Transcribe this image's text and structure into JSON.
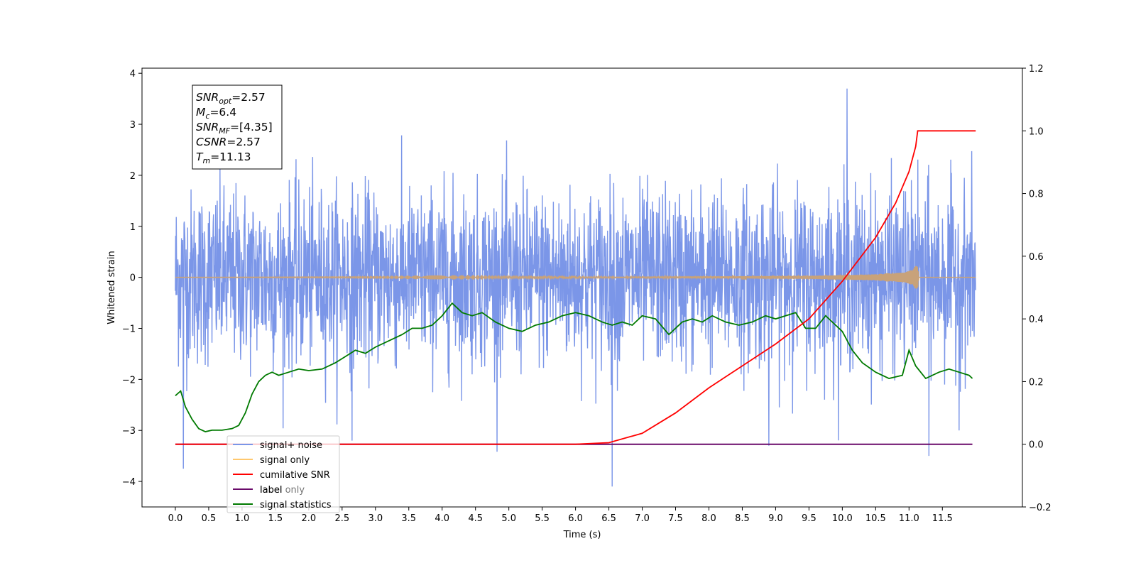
{
  "chart_data": {
    "type": "line",
    "xlabel": "Time (s)",
    "ylabel": "Whitened strain",
    "xlim": [
      -0.5,
      12.7
    ],
    "ylim": [
      -4.5,
      4.1
    ],
    "y2lim": [
      -0.2,
      1.2
    ],
    "x_ticks": [
      "0.0",
      "0.5",
      "1.0",
      "1.5",
      "2.0",
      "2.5",
      "3.0",
      "3.5",
      "4.0",
      "4.5",
      "5.0",
      "5.5",
      "6.0",
      "6.5",
      "7.0",
      "7.5",
      "8.0",
      "8.5",
      "9.0",
      "9.5",
      "10.0",
      "10.5",
      "11.0",
      "11.5"
    ],
    "y_ticks": [
      "4",
      "3",
      "2",
      "1",
      "0",
      "−1",
      "−2",
      "−3",
      "−4"
    ],
    "y2_ticks": [
      "1.2",
      "1.0",
      "0.8",
      "0.6",
      "0.4",
      "0.2",
      "0.0",
      "−0.2"
    ],
    "annotation": [
      {
        "base": "SNR",
        "sub": "opt",
        "value": "=2.57"
      },
      {
        "base": "M",
        "sub": "c",
        "value": "=6.4"
      },
      {
        "base": "SNR",
        "sub": "MF",
        "value": "=[4.35]"
      },
      {
        "base": "CSNR",
        "sub": "",
        "value": "=2.57"
      },
      {
        "base": "T",
        "sub": "m",
        "value": "=11.13"
      }
    ],
    "legend_position": "lower-left",
    "legend": [
      {
        "label": "signal+ noise",
        "color": "#7b96e8"
      },
      {
        "label": "signal only",
        "color": "#ffc86e"
      },
      {
        "label": "cumilative SNR",
        "color": "#ff0000"
      },
      {
        "label": "label",
        "color": "#6a0a6a"
      },
      {
        "label": "signal statistics",
        "color": "#007a00"
      }
    ],
    "ghost_legend_text": "label only",
    "series": {
      "noise": {
        "color": "#7b96e8",
        "x_start": 0.0,
        "x_end": 12.0,
        "envelope_top": 1.5,
        "envelope_bottom": -1.5
      },
      "signal": {
        "color": "#c8a27a",
        "x": [
          0.0,
          6.0,
          8.0,
          9.5,
          10.5,
          11.0,
          11.13,
          11.15,
          12.0
        ],
        "amplitude": [
          0.0,
          0.01,
          0.02,
          0.03,
          0.06,
          0.12,
          0.25,
          0.0,
          0.0
        ]
      },
      "cumulative_snr": {
        "color": "#ff0000",
        "x": [
          0.0,
          5.0,
          6.0,
          6.5,
          7.0,
          7.5,
          8.0,
          8.5,
          9.0,
          9.5,
          10.0,
          10.5,
          10.8,
          11.0,
          11.1,
          11.13,
          12.0
        ],
        "y": [
          0.0,
          0.0,
          0.0,
          0.005,
          0.035,
          0.1,
          0.18,
          0.25,
          0.32,
          0.4,
          0.52,
          0.66,
          0.77,
          0.87,
          0.95,
          1.0,
          1.0
        ]
      },
      "label": {
        "color": "#6a0a6a",
        "x": [
          0.0,
          11.95
        ],
        "y": [
          0.0,
          0.0
        ]
      },
      "signal_statistics": {
        "color": "#007a00",
        "x": [
          0.0,
          0.08,
          0.15,
          0.25,
          0.35,
          0.45,
          0.55,
          0.7,
          0.85,
          0.95,
          1.05,
          1.15,
          1.25,
          1.35,
          1.45,
          1.55,
          1.7,
          1.85,
          2.0,
          2.2,
          2.4,
          2.55,
          2.7,
          2.85,
          3.0,
          3.2,
          3.4,
          3.55,
          3.7,
          3.85,
          4.0,
          4.15,
          4.3,
          4.45,
          4.6,
          4.8,
          5.0,
          5.2,
          5.4,
          5.6,
          5.8,
          6.0,
          6.2,
          6.4,
          6.55,
          6.7,
          6.85,
          7.0,
          7.2,
          7.4,
          7.6,
          7.75,
          7.9,
          8.05,
          8.25,
          8.45,
          8.65,
          8.85,
          9.0,
          9.15,
          9.3,
          9.45,
          9.6,
          9.75,
          9.9,
          10.0,
          10.15,
          10.3,
          10.5,
          10.7,
          10.9,
          11.0,
          11.1,
          11.25,
          11.45,
          11.6,
          11.75,
          11.9,
          11.95
        ],
        "y": [
          0.155,
          0.17,
          0.12,
          0.08,
          0.05,
          0.04,
          0.045,
          0.045,
          0.05,
          0.06,
          0.1,
          0.16,
          0.2,
          0.22,
          0.23,
          0.22,
          0.23,
          0.24,
          0.235,
          0.24,
          0.26,
          0.28,
          0.3,
          0.29,
          0.31,
          0.33,
          0.35,
          0.37,
          0.37,
          0.38,
          0.41,
          0.45,
          0.42,
          0.41,
          0.42,
          0.39,
          0.37,
          0.36,
          0.38,
          0.39,
          0.41,
          0.42,
          0.41,
          0.39,
          0.38,
          0.39,
          0.38,
          0.41,
          0.4,
          0.35,
          0.39,
          0.4,
          0.39,
          0.41,
          0.39,
          0.38,
          0.39,
          0.41,
          0.4,
          0.41,
          0.42,
          0.37,
          0.37,
          0.41,
          0.38,
          0.36,
          0.3,
          0.26,
          0.23,
          0.21,
          0.22,
          0.3,
          0.25,
          0.21,
          0.23,
          0.24,
          0.23,
          0.22,
          0.21
        ]
      }
    }
  }
}
